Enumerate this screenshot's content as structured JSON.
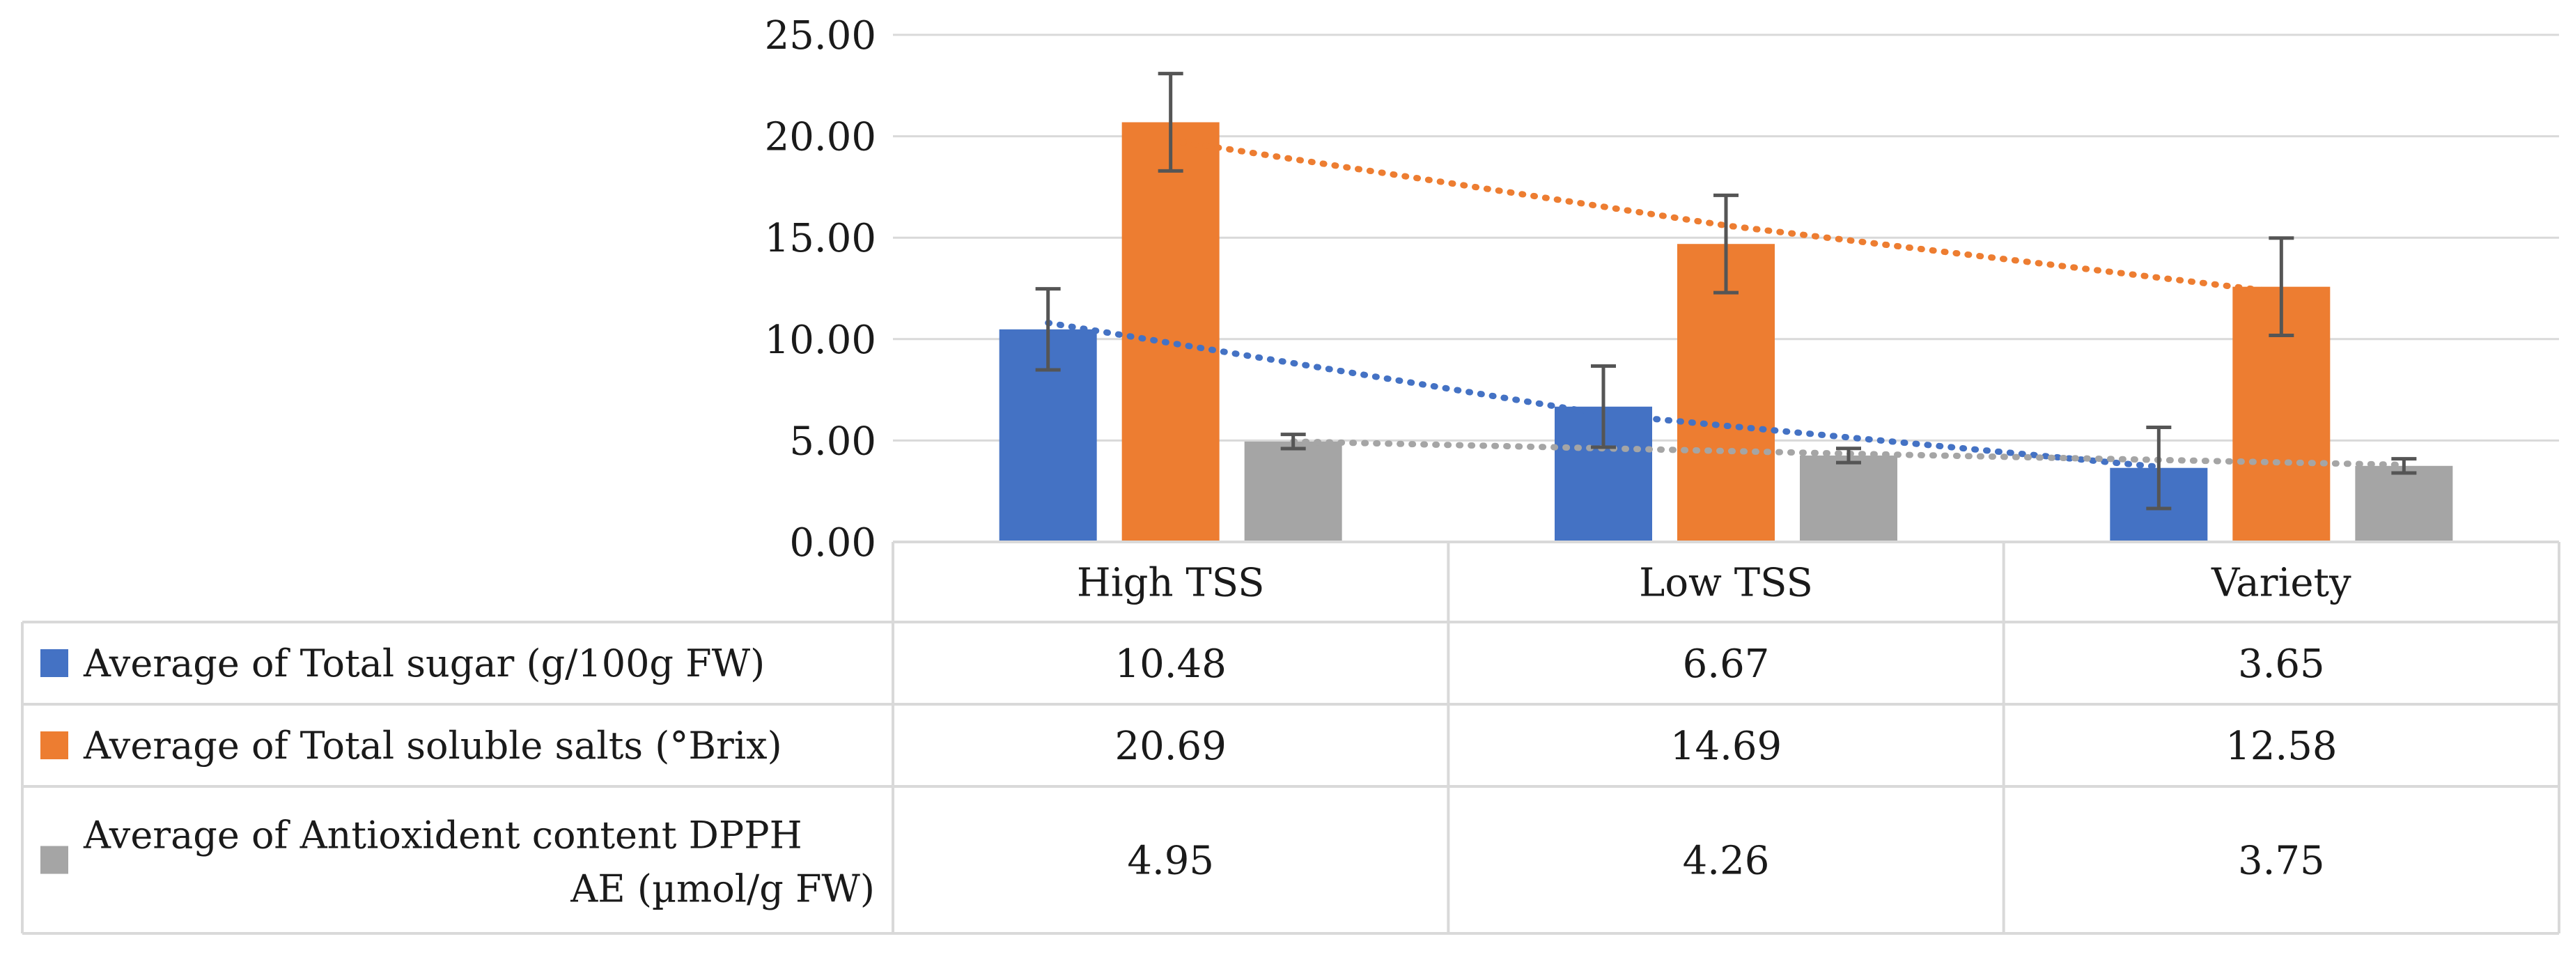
{
  "chart_data": {
    "type": "bar",
    "title": "",
    "xlabel": "",
    "ylabel": "",
    "ylim": [
      0,
      25
    ],
    "y_ticks": [
      "25.00",
      "20.00",
      "15.00",
      "10.00",
      "5.00",
      "0.00"
    ],
    "y_tick_values": [
      25,
      20,
      15,
      10,
      5,
      0
    ],
    "grid": true,
    "legend": "data-table-below",
    "categories": [
      "High TSS",
      "Low TSS",
      "Variety"
    ],
    "series": [
      {
        "name": "Average of Total sugar (g/100g FW)",
        "label_lines": [
          "Average of Total sugar (g/100g FW)"
        ],
        "color": "#4472C4",
        "values": [
          10.48,
          6.67,
          3.65
        ],
        "labels": [
          "10.48",
          "6.67",
          "3.65"
        ],
        "error": [
          2.0,
          2.0,
          2.0
        ],
        "trend": [
          10.8,
          6.3,
          3.7
        ]
      },
      {
        "name": "Average of Total soluble salts (°Brix)",
        "label_lines": [
          "Average of Total soluble salts (°Brix)"
        ],
        "color": "#ED7D31",
        "values": [
          20.69,
          14.69,
          12.58
        ],
        "labels": [
          "20.69",
          "14.69",
          "12.58"
        ],
        "error": [
          2.4,
          2.4,
          2.4
        ],
        "trend": [
          19.8,
          15.6,
          12.3
        ]
      },
      {
        "name": "Average of Antioxident content DPPH AE (µmol/g FW)",
        "label_lines": [
          "Average of Antioxident content DPPH",
          "AE (µmol/g FW)"
        ],
        "color": "#A5A5A5",
        "values": [
          4.95,
          4.26,
          3.75
        ],
        "labels": [
          "4.95",
          "4.26",
          "3.75"
        ],
        "error": [
          0.35,
          0.35,
          0.35
        ],
        "trend": [
          4.95,
          4.35,
          3.8
        ]
      }
    ]
  }
}
